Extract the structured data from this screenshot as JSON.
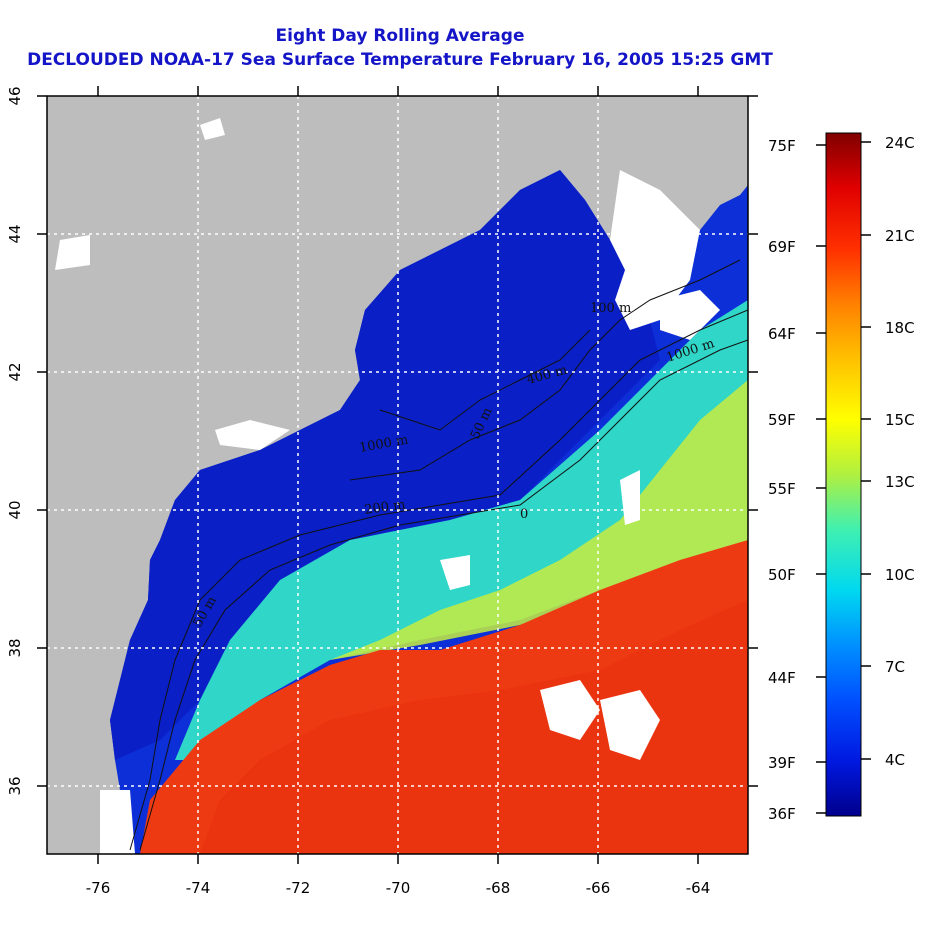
{
  "title": {
    "line1": "Eight Day Rolling Average",
    "line2": "DECLOUDED NOAA-17 Sea Surface Temperature February 16, 2005 15:25 GMT"
  },
  "map": {
    "lon_range": [
      -77,
      -63
    ],
    "lat_range": [
      35,
      46
    ],
    "lon_ticks": [
      "-76",
      "-74",
      "-72",
      "-70",
      "-68",
      "-66",
      "-64"
    ],
    "lat_ticks": [
      "36",
      "38",
      "40",
      "42",
      "44",
      "46"
    ],
    "grid_color": "#ffffff",
    "land_color": "#bdbdbd",
    "cloud_color": "#ffffff",
    "contour_labels": [
      "100 m",
      "1000 m",
      "400 m",
      "50 m",
      "1000 m",
      "200 m",
      "0",
      "50 m"
    ]
  },
  "colorbar": {
    "fahrenheit_labels": [
      "75F",
      "69F",
      "64F",
      "59F",
      "55F",
      "50F",
      "44F",
      "39F",
      "36F"
    ],
    "celsius_labels": [
      "24C",
      "21C",
      "18C",
      "15C",
      "13C",
      "10C",
      "7C",
      "4C"
    ],
    "colors": [
      "#00008c",
      "#0018e0",
      "#0050ff",
      "#0090ff",
      "#00d8f0",
      "#40f0b0",
      "#b0f040",
      "#ffff00",
      "#ffc000",
      "#ff8000",
      "#ff3000",
      "#e00000",
      "#800000"
    ]
  }
}
